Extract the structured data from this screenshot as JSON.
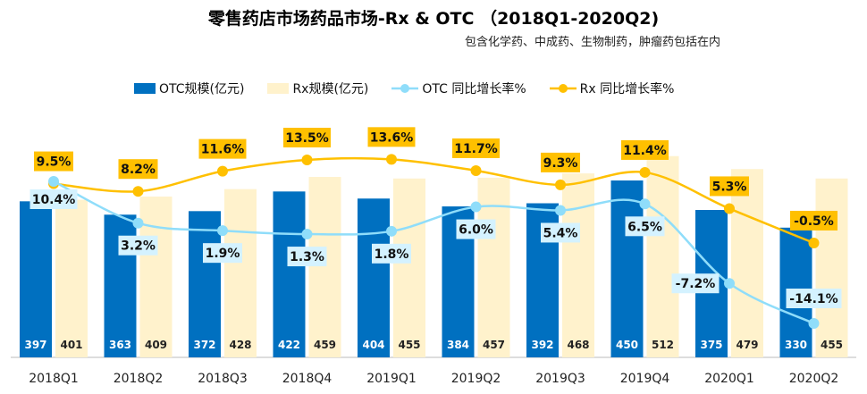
{
  "chart_data": {
    "type": "bar+line",
    "title": "零售药店市场药品市场-Rx & OTC （2018Q1-2020Q2)",
    "subtitle": "包含化学药、中成药、生物制药，肿瘤药包括在内",
    "categories": [
      "2018Q1",
      "2018Q2",
      "2018Q3",
      "2018Q4",
      "2019Q1",
      "2019Q2",
      "2019Q3",
      "2019Q4",
      "2020Q1",
      "2020Q2"
    ],
    "series": [
      {
        "name": "OTC规模(亿元)",
        "type": "bar",
        "color": "#0070C0",
        "values": [
          397,
          363,
          372,
          422,
          404,
          384,
          392,
          450,
          375,
          330
        ]
      },
      {
        "name": "Rx规模(亿元)",
        "type": "bar",
        "color": "#FFF2CC",
        "values": [
          401,
          409,
          428,
          459,
          455,
          457,
          468,
          512,
          479,
          455
        ]
      },
      {
        "name": "OTC 同比增长率%",
        "type": "line",
        "color": "#8FDDFA",
        "values": [
          10.4,
          3.2,
          1.9,
          1.3,
          1.8,
          6.0,
          5.4,
          6.5,
          -7.2,
          -14.1
        ],
        "labels": [
          "10.4%",
          "3.2%",
          "1.9%",
          "1.3%",
          "1.8%",
          "6.0%",
          "5.4%",
          "6.5%",
          "-7.2%",
          "-14.1%"
        ]
      },
      {
        "name": "Rx 同比增长率%",
        "type": "line",
        "color": "#FFC000",
        "values": [
          9.5,
          8.2,
          11.6,
          13.5,
          13.6,
          11.7,
          9.3,
          11.4,
          5.3,
          -0.5
        ],
        "labels": [
          "9.5%",
          "8.2%",
          "11.6%",
          "13.5%",
          "13.6%",
          "11.7%",
          "9.3%",
          "11.4%",
          "5.3%",
          "-0.5%"
        ]
      }
    ],
    "legend_position": "top",
    "grid": false
  }
}
